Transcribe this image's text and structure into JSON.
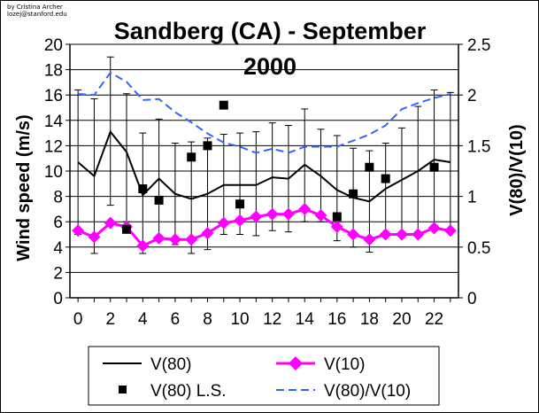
{
  "credit": "by Cristina Archer lozej@stanford.edu",
  "chart_data": {
    "type": "line",
    "title_line1": "Sandberg (CA) - September",
    "title_line2": "2000",
    "ylabel": "Wind speed (m/s)",
    "y2label": "V(80)/V(10)",
    "xlabel": "",
    "x": [
      0,
      1,
      2,
      3,
      4,
      5,
      6,
      7,
      8,
      9,
      10,
      11,
      12,
      13,
      14,
      15,
      16,
      17,
      18,
      19,
      20,
      21,
      22,
      23
    ],
    "xticks": [
      "0",
      "2",
      "4",
      "6",
      "8",
      "10",
      "12",
      "14",
      "16",
      "18",
      "20",
      "22"
    ],
    "xtick_values": [
      0,
      2,
      4,
      6,
      8,
      10,
      12,
      14,
      16,
      18,
      20,
      22
    ],
    "xlim": [
      -0.5,
      23.5
    ],
    "ylim": [
      0,
      20
    ],
    "yticks": [
      "0",
      "2",
      "4",
      "6",
      "8",
      "10",
      "12",
      "14",
      "16",
      "18",
      "20"
    ],
    "ytick_values": [
      0,
      2,
      4,
      6,
      8,
      10,
      12,
      14,
      16,
      18,
      20
    ],
    "y2lim": [
      0,
      2.5
    ],
    "y2ticks": [
      "0",
      "0.5",
      "1",
      "1.5",
      "2",
      "2.5"
    ],
    "y2tick_values": [
      0,
      0.5,
      1,
      1.5,
      2,
      2.5
    ],
    "grid": "horizontal",
    "legend_position": "bottom",
    "series": [
      {
        "name": "V(80)",
        "axis": "left",
        "style": "solid-line",
        "color": "#000000",
        "values": [
          10.7,
          9.6,
          13.1,
          11.5,
          8.1,
          9.4,
          8.2,
          7.8,
          8.2,
          8.9,
          8.9,
          8.9,
          9.5,
          9.4,
          10.5,
          9.6,
          8.5,
          7.9,
          7.6,
          8.6,
          9.3,
          10.0,
          10.9,
          10.7
        ],
        "error_upper": [
          16.4,
          15.7,
          19.0,
          16.1,
          13.0,
          14.1,
          12.2,
          12.3,
          12.6,
          12.9,
          13.0,
          13.1,
          13.8,
          13.6,
          14.9,
          13.3,
          12.8,
          11.8,
          11.6,
          12.2,
          13.4,
          15.1,
          16.4,
          16.2
        ],
        "error_lower": [
          5.0,
          3.5,
          7.3,
          6.0,
          3.5,
          4.9,
          4.2,
          3.5,
          3.8,
          5.0,
          5.0,
          4.9,
          5.3,
          5.2,
          6.0,
          6.0,
          4.5,
          4.0,
          3.6,
          5.0,
          5.1,
          5.2,
          5.7,
          5.4
        ]
      },
      {
        "name": "V(10)",
        "axis": "left",
        "style": "line-diamond",
        "color": "#FF00FF",
        "values": [
          5.3,
          4.8,
          5.9,
          5.6,
          4.1,
          4.7,
          4.6,
          4.6,
          5.1,
          5.9,
          6.1,
          6.4,
          6.6,
          6.6,
          7.0,
          6.5,
          5.6,
          5.0,
          4.6,
          5.0,
          5.0,
          5.0,
          5.5,
          5.3
        ]
      },
      {
        "name": "V(80) L.S.",
        "axis": "left",
        "style": "square-markers",
        "color": "#000000",
        "points": [
          {
            "x": 3,
            "y": 5.4
          },
          {
            "x": 4,
            "y": 8.6
          },
          {
            "x": 5,
            "y": 7.7
          },
          {
            "x": 7,
            "y": 11.1
          },
          {
            "x": 8,
            "y": 12.0
          },
          {
            "x": 9,
            "y": 15.2
          },
          {
            "x": 10,
            "y": 7.4
          },
          {
            "x": 16,
            "y": 6.4
          },
          {
            "x": 17,
            "y": 8.2
          },
          {
            "x": 18,
            "y": 10.3
          },
          {
            "x": 19,
            "y": 9.4
          },
          {
            "x": 22,
            "y": 10.3
          }
        ]
      },
      {
        "name": "V(80)/V(10)",
        "axis": "right",
        "style": "dashed-line",
        "color": "#3366FF",
        "values": [
          2.01,
          2.0,
          2.22,
          2.13,
          1.95,
          1.96,
          1.83,
          1.73,
          1.62,
          1.53,
          1.49,
          1.43,
          1.47,
          1.43,
          1.49,
          1.49,
          1.49,
          1.55,
          1.61,
          1.7,
          1.86,
          1.92,
          1.97,
          2.01
        ]
      }
    ]
  }
}
